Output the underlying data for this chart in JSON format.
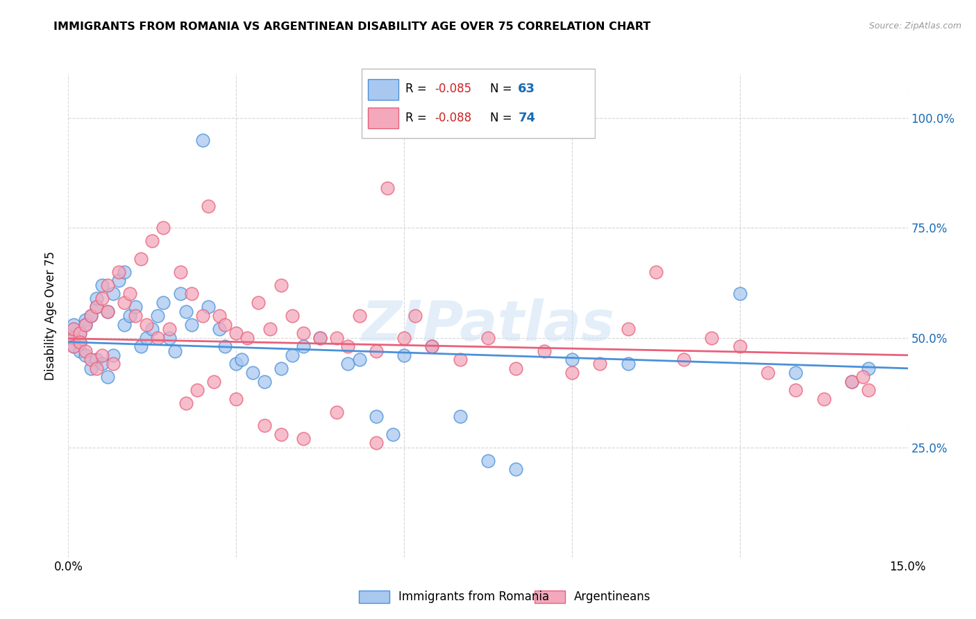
{
  "title": "IMMIGRANTS FROM ROMANIA VS ARGENTINEAN DISABILITY AGE OVER 75 CORRELATION CHART",
  "source": "Source: ZipAtlas.com",
  "ylabel_left": "Disability Age Over 75",
  "xlim": [
    0.0,
    0.15
  ],
  "ylim": [
    0.0,
    1.1
  ],
  "legend_label1": "Immigrants from Romania",
  "legend_label2": "Argentineans",
  "color_blue": "#a8c8f0",
  "color_pink": "#f4a8bc",
  "color_blue_line": "#4a90d9",
  "color_pink_line": "#e8607a",
  "color_r_val": "#cc2222",
  "color_n_val": "#1a6bb5",
  "watermark_text": "ZIPatlas",
  "blue_x": [
    0.001,
    0.001,
    0.001,
    0.001,
    0.002,
    0.002,
    0.002,
    0.003,
    0.003,
    0.003,
    0.004,
    0.004,
    0.005,
    0.005,
    0.005,
    0.006,
    0.006,
    0.007,
    0.007,
    0.008,
    0.008,
    0.009,
    0.01,
    0.01,
    0.011,
    0.012,
    0.013,
    0.014,
    0.015,
    0.016,
    0.017,
    0.018,
    0.019,
    0.02,
    0.021,
    0.022,
    0.024,
    0.025,
    0.027,
    0.028,
    0.03,
    0.031,
    0.033,
    0.035,
    0.038,
    0.04,
    0.042,
    0.045,
    0.05,
    0.052,
    0.055,
    0.058,
    0.06,
    0.065,
    0.07,
    0.075,
    0.08,
    0.09,
    0.1,
    0.12,
    0.13,
    0.14,
    0.143
  ],
  "blue_y": [
    0.5,
    0.48,
    0.52,
    0.53,
    0.49,
    0.51,
    0.47,
    0.54,
    0.46,
    0.53,
    0.55,
    0.43,
    0.57,
    0.45,
    0.59,
    0.44,
    0.62,
    0.41,
    0.56,
    0.46,
    0.6,
    0.63,
    0.53,
    0.65,
    0.55,
    0.57,
    0.48,
    0.5,
    0.52,
    0.55,
    0.58,
    0.5,
    0.47,
    0.6,
    0.56,
    0.53,
    0.95,
    0.57,
    0.52,
    0.48,
    0.44,
    0.45,
    0.42,
    0.4,
    0.43,
    0.46,
    0.48,
    0.5,
    0.44,
    0.45,
    0.32,
    0.28,
    0.46,
    0.48,
    0.32,
    0.22,
    0.2,
    0.45,
    0.44,
    0.6,
    0.42,
    0.4,
    0.43
  ],
  "pink_x": [
    0.001,
    0.001,
    0.001,
    0.002,
    0.002,
    0.003,
    0.003,
    0.004,
    0.004,
    0.005,
    0.005,
    0.006,
    0.006,
    0.007,
    0.007,
    0.008,
    0.009,
    0.01,
    0.011,
    0.012,
    0.013,
    0.014,
    0.015,
    0.016,
    0.017,
    0.018,
    0.02,
    0.022,
    0.024,
    0.025,
    0.027,
    0.028,
    0.03,
    0.032,
    0.034,
    0.036,
    0.038,
    0.04,
    0.042,
    0.045,
    0.048,
    0.05,
    0.052,
    0.055,
    0.057,
    0.06,
    0.062,
    0.065,
    0.07,
    0.075,
    0.08,
    0.085,
    0.09,
    0.095,
    0.1,
    0.105,
    0.11,
    0.115,
    0.12,
    0.125,
    0.13,
    0.135,
    0.14,
    0.142,
    0.143,
    0.021,
    0.023,
    0.026,
    0.03,
    0.035,
    0.038,
    0.042,
    0.048,
    0.055
  ],
  "pink_y": [
    0.5,
    0.48,
    0.52,
    0.51,
    0.49,
    0.53,
    0.47,
    0.55,
    0.45,
    0.57,
    0.43,
    0.59,
    0.46,
    0.56,
    0.62,
    0.44,
    0.65,
    0.58,
    0.6,
    0.55,
    0.68,
    0.53,
    0.72,
    0.5,
    0.75,
    0.52,
    0.65,
    0.6,
    0.55,
    0.8,
    0.55,
    0.53,
    0.51,
    0.5,
    0.58,
    0.52,
    0.62,
    0.55,
    0.51,
    0.5,
    0.5,
    0.48,
    0.55,
    0.47,
    0.84,
    0.5,
    0.55,
    0.48,
    0.45,
    0.5,
    0.43,
    0.47,
    0.42,
    0.44,
    0.52,
    0.65,
    0.45,
    0.5,
    0.48,
    0.42,
    0.38,
    0.36,
    0.4,
    0.41,
    0.38,
    0.35,
    0.38,
    0.4,
    0.36,
    0.3,
    0.28,
    0.27,
    0.33,
    0.26
  ]
}
